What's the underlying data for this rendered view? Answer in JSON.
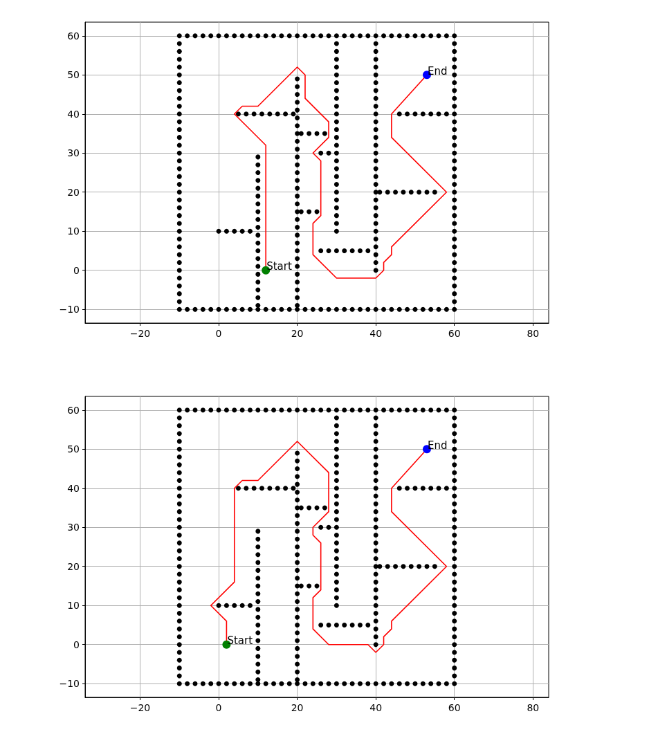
{
  "chart_data": [
    {
      "type": "scatter",
      "xlim": [
        -34,
        84
      ],
      "ylim": [
        -13.5,
        63.5
      ],
      "xticks": [
        {
          "value": -20,
          "label": "−20"
        },
        0,
        20,
        40,
        60,
        80
      ],
      "yticks": [
        {
          "value": -10,
          "label": "−10"
        },
        0,
        10,
        20,
        30,
        40,
        50,
        60
      ],
      "grid": true,
      "series": [
        {
          "color": "#000000",
          "x": [
            -10,
            -8,
            -6,
            -4,
            -2,
            0,
            2,
            4,
            6,
            8,
            10,
            12,
            14,
            16,
            18,
            20,
            22,
            24,
            26,
            28,
            30,
            32,
            34,
            36,
            38,
            40,
            42,
            44,
            46,
            48,
            50,
            52,
            54,
            56,
            58,
            60
          ],
          "values": [
            -10,
            -10,
            -10,
            -10,
            -10,
            -10,
            -10,
            -10,
            -10,
            -10,
            -10,
            -10,
            -10,
            -10,
            -10,
            -10,
            -10,
            -10,
            -10,
            -10,
            -10,
            -10,
            -10,
            -10,
            -10,
            -10,
            -10,
            -10,
            -10,
            -10,
            -10,
            -10,
            -10,
            -10,
            -10,
            -10
          ]
        },
        {
          "color": "#000000",
          "x": [
            -10,
            -8,
            -6,
            -4,
            -2,
            0,
            2,
            4,
            6,
            8,
            10,
            12,
            14,
            16,
            18,
            20,
            22,
            24,
            26,
            28,
            30,
            32,
            34,
            36,
            38,
            40,
            42,
            44,
            46,
            48,
            50,
            52,
            54,
            56,
            58,
            60
          ],
          "values": [
            60,
            60,
            60,
            60,
            60,
            60,
            60,
            60,
            60,
            60,
            60,
            60,
            60,
            60,
            60,
            60,
            60,
            60,
            60,
            60,
            60,
            60,
            60,
            60,
            60,
            60,
            60,
            60,
            60,
            60,
            60,
            60,
            60,
            60,
            60,
            60
          ]
        },
        {
          "color": "#000000",
          "x": [
            -10,
            -10,
            -10,
            -10,
            -10,
            -10,
            -10,
            -10,
            -10,
            -10,
            -10,
            -10,
            -10,
            -10,
            -10,
            -10,
            -10,
            -10,
            -10,
            -10,
            -10,
            -10,
            -10,
            -10,
            -10,
            -10,
            -10,
            -10,
            -10,
            -10,
            -10,
            -10,
            -10,
            -10
          ],
          "values": [
            -8,
            -6,
            -4,
            -2,
            0,
            2,
            4,
            6,
            8,
            10,
            12,
            14,
            16,
            18,
            20,
            22,
            24,
            26,
            28,
            30,
            32,
            34,
            36,
            38,
            40,
            42,
            44,
            46,
            48,
            50,
            52,
            54,
            56,
            58
          ]
        },
        {
          "color": "#000000",
          "x": [
            60,
            60,
            60,
            60,
            60,
            60,
            60,
            60,
            60,
            60,
            60,
            60,
            60,
            60,
            60,
            60,
            60,
            60,
            60,
            60,
            60,
            60,
            60,
            60,
            60,
            60,
            60,
            60,
            60,
            60,
            60,
            60,
            60,
            60
          ],
          "values": [
            -8,
            -6,
            -4,
            -2,
            0,
            2,
            4,
            6,
            8,
            10,
            12,
            14,
            16,
            18,
            20,
            22,
            24,
            26,
            28,
            30,
            32,
            34,
            36,
            38,
            40,
            42,
            44,
            46,
            48,
            50,
            52,
            54,
            56,
            58
          ]
        },
        {
          "color": "#000000",
          "x": [
            10,
            10,
            10,
            10,
            10,
            10,
            10,
            10,
            10,
            10,
            10,
            10,
            10,
            10,
            10,
            10,
            10,
            10,
            10,
            10
          ],
          "values": [
            -9,
            -7,
            -5,
            -3,
            -1,
            1,
            3,
            5,
            7,
            9,
            11,
            13,
            15,
            17,
            19,
            21,
            23,
            25,
            27,
            29
          ]
        },
        {
          "color": "#000000",
          "x": [
            0,
            2,
            4,
            6,
            8
          ],
          "values": [
            10,
            10,
            10,
            10,
            10
          ]
        },
        {
          "color": "#000000",
          "x": [
            20,
            20,
            20,
            20,
            20,
            20,
            20,
            20,
            20,
            20,
            20,
            20,
            20,
            20,
            20,
            20,
            20,
            20,
            20,
            20,
            20,
            20,
            20,
            20,
            20,
            20,
            20,
            20,
            20,
            20
          ],
          "values": [
            -9,
            -7,
            -5,
            -3,
            -1,
            1,
            3,
            5,
            7,
            9,
            11,
            13,
            15,
            17,
            19,
            21,
            23,
            25,
            27,
            29,
            31,
            33,
            35,
            37,
            39,
            41,
            43,
            45,
            47,
            49
          ]
        },
        {
          "color": "#000000",
          "x": [
            5,
            7,
            9,
            11,
            13,
            15,
            17,
            19
          ],
          "values": [
            40,
            40,
            40,
            40,
            40,
            40,
            40,
            40
          ]
        },
        {
          "color": "#000000",
          "x": [
            21,
            23,
            25,
            27
          ],
          "values": [
            35,
            35,
            35,
            35
          ]
        },
        {
          "color": "#000000",
          "x": [
            26,
            28
          ],
          "values": [
            30,
            30
          ]
        },
        {
          "color": "#000000",
          "x": [
            30,
            30,
            30,
            30,
            30,
            30,
            30,
            30,
            30,
            30,
            30,
            30,
            30,
            30,
            30,
            30,
            30,
            30,
            30,
            30,
            30,
            30,
            30,
            30,
            30
          ],
          "values": [
            10,
            12,
            14,
            16,
            18,
            20,
            22,
            24,
            26,
            28,
            30,
            32,
            34,
            36,
            38,
            40,
            42,
            44,
            46,
            48,
            50,
            52,
            54,
            56,
            58
          ]
        },
        {
          "color": "#000000",
          "x": [
            21,
            23,
            25
          ],
          "values": [
            15,
            15,
            15
          ]
        },
        {
          "color": "#000000",
          "x": [
            26,
            28,
            30,
            32,
            34,
            36,
            38
          ],
          "values": [
            5,
            5,
            5,
            5,
            5,
            5,
            5
          ]
        },
        {
          "color": "#000000",
          "x": [
            40,
            40,
            40,
            40,
            40,
            40,
            40,
            40,
            40,
            40,
            40,
            40,
            40,
            40,
            40,
            40,
            40,
            40,
            40,
            40,
            40,
            40,
            40,
            40,
            40,
            40,
            40,
            40,
            40,
            40
          ],
          "values": [
            0,
            2,
            4,
            6,
            8,
            10,
            12,
            14,
            16,
            18,
            20,
            22,
            24,
            26,
            28,
            30,
            32,
            34,
            36,
            38,
            40,
            42,
            44,
            46,
            48,
            50,
            52,
            54,
            56,
            58
          ]
        },
        {
          "color": "#000000",
          "x": [
            41,
            43,
            45,
            47,
            49,
            51,
            53,
            55
          ],
          "values": [
            20,
            20,
            20,
            20,
            20,
            20,
            20,
            20
          ]
        },
        {
          "color": "#000000",
          "x": [
            46,
            48,
            50,
            52,
            54,
            56,
            58
          ],
          "values": [
            40,
            40,
            40,
            40,
            40,
            40,
            40
          ]
        },
        {
          "type": "line",
          "color": "#ff0000",
          "x": [
            12,
            12,
            4,
            6,
            10,
            20,
            22,
            22,
            28,
            28,
            24,
            26,
            26,
            24,
            24,
            30,
            40,
            42,
            42,
            44,
            44,
            58,
            44,
            44,
            53
          ],
          "values": [
            0,
            32,
            40,
            42,
            42,
            52,
            50,
            44,
            38,
            34,
            30,
            28,
            14,
            12,
            4,
            -2,
            -2,
            0,
            2,
            4,
            6,
            20,
            34,
            40,
            50
          ]
        },
        {
          "color": "#008000",
          "x": [
            12
          ],
          "values": [
            0
          ]
        },
        {
          "color": "#0000ff",
          "x": [
            53
          ],
          "values": [
            50
          ]
        }
      ],
      "annotations": [
        {
          "text": "Start",
          "x": 12,
          "y": 0
        },
        {
          "text": "End",
          "x": 53,
          "y": 50
        }
      ]
    },
    {
      "type": "scatter",
      "xlim": [
        -34,
        84
      ],
      "ylim": [
        -13.5,
        63.5
      ],
      "xticks": [
        {
          "value": -20,
          "label": "−20"
        },
        0,
        20,
        40,
        60,
        80
      ],
      "yticks": [
        {
          "value": -10,
          "label": "−10"
        },
        0,
        10,
        20,
        30,
        40,
        50,
        60
      ],
      "grid": true,
      "series": [
        {
          "color": "#000000",
          "x": [
            -10,
            -8,
            -6,
            -4,
            -2,
            0,
            2,
            4,
            6,
            8,
            10,
            12,
            14,
            16,
            18,
            20,
            22,
            24,
            26,
            28,
            30,
            32,
            34,
            36,
            38,
            40,
            42,
            44,
            46,
            48,
            50,
            52,
            54,
            56,
            58,
            60
          ],
          "values": [
            -10,
            -10,
            -10,
            -10,
            -10,
            -10,
            -10,
            -10,
            -10,
            -10,
            -10,
            -10,
            -10,
            -10,
            -10,
            -10,
            -10,
            -10,
            -10,
            -10,
            -10,
            -10,
            -10,
            -10,
            -10,
            -10,
            -10,
            -10,
            -10,
            -10,
            -10,
            -10,
            -10,
            -10,
            -10,
            -10
          ]
        },
        {
          "color": "#000000",
          "x": [
            -10,
            -8,
            -6,
            -4,
            -2,
            0,
            2,
            4,
            6,
            8,
            10,
            12,
            14,
            16,
            18,
            20,
            22,
            24,
            26,
            28,
            30,
            32,
            34,
            36,
            38,
            40,
            42,
            44,
            46,
            48,
            50,
            52,
            54,
            56,
            58,
            60
          ],
          "values": [
            60,
            60,
            60,
            60,
            60,
            60,
            60,
            60,
            60,
            60,
            60,
            60,
            60,
            60,
            60,
            60,
            60,
            60,
            60,
            60,
            60,
            60,
            60,
            60,
            60,
            60,
            60,
            60,
            60,
            60,
            60,
            60,
            60,
            60,
            60,
            60
          ]
        },
        {
          "color": "#000000",
          "x": [
            -10,
            -10,
            -10,
            -10,
            -10,
            -10,
            -10,
            -10,
            -10,
            -10,
            -10,
            -10,
            -10,
            -10,
            -10,
            -10,
            -10,
            -10,
            -10,
            -10,
            -10,
            -10,
            -10,
            -10,
            -10,
            -10,
            -10,
            -10,
            -10,
            -10,
            -10,
            -10,
            -10,
            -10
          ],
          "values": [
            -8,
            -6,
            -4,
            -2,
            0,
            2,
            4,
            6,
            8,
            10,
            12,
            14,
            16,
            18,
            20,
            22,
            24,
            26,
            28,
            30,
            32,
            34,
            36,
            38,
            40,
            42,
            44,
            46,
            48,
            50,
            52,
            54,
            56,
            58
          ]
        },
        {
          "color": "#000000",
          "x": [
            60,
            60,
            60,
            60,
            60,
            60,
            60,
            60,
            60,
            60,
            60,
            60,
            60,
            60,
            60,
            60,
            60,
            60,
            60,
            60,
            60,
            60,
            60,
            60,
            60,
            60,
            60,
            60,
            60,
            60,
            60,
            60,
            60,
            60
          ],
          "values": [
            -8,
            -6,
            -4,
            -2,
            0,
            2,
            4,
            6,
            8,
            10,
            12,
            14,
            16,
            18,
            20,
            22,
            24,
            26,
            28,
            30,
            32,
            34,
            36,
            38,
            40,
            42,
            44,
            46,
            48,
            50,
            52,
            54,
            56,
            58
          ]
        },
        {
          "color": "#000000",
          "x": [
            10,
            10,
            10,
            10,
            10,
            10,
            10,
            10,
            10,
            10,
            10,
            10,
            10,
            10,
            10,
            10,
            10,
            10,
            10,
            10
          ],
          "values": [
            -9,
            -7,
            -5,
            -3,
            -1,
            1,
            3,
            5,
            7,
            9,
            11,
            13,
            15,
            17,
            19,
            21,
            23,
            25,
            27,
            29
          ]
        },
        {
          "color": "#000000",
          "x": [
            0,
            2,
            4,
            6,
            8
          ],
          "values": [
            10,
            10,
            10,
            10,
            10
          ]
        },
        {
          "color": "#000000",
          "x": [
            20,
            20,
            20,
            20,
            20,
            20,
            20,
            20,
            20,
            20,
            20,
            20,
            20,
            20,
            20,
            20,
            20,
            20,
            20,
            20,
            20,
            20,
            20,
            20,
            20,
            20,
            20,
            20,
            20,
            20
          ],
          "values": [
            -9,
            -7,
            -5,
            -3,
            -1,
            1,
            3,
            5,
            7,
            9,
            11,
            13,
            15,
            17,
            19,
            21,
            23,
            25,
            27,
            29,
            31,
            33,
            35,
            37,
            39,
            41,
            43,
            45,
            47,
            49
          ]
        },
        {
          "color": "#000000",
          "x": [
            5,
            7,
            9,
            11,
            13,
            15,
            17,
            19
          ],
          "values": [
            40,
            40,
            40,
            40,
            40,
            40,
            40,
            40
          ]
        },
        {
          "color": "#000000",
          "x": [
            21,
            23,
            25,
            27
          ],
          "values": [
            35,
            35,
            35,
            35
          ]
        },
        {
          "color": "#000000",
          "x": [
            26,
            28
          ],
          "values": [
            30,
            30
          ]
        },
        {
          "color": "#000000",
          "x": [
            30,
            30,
            30,
            30,
            30,
            30,
            30,
            30,
            30,
            30,
            30,
            30,
            30,
            30,
            30,
            30,
            30,
            30,
            30,
            30,
            30,
            30,
            30,
            30,
            30
          ],
          "values": [
            10,
            12,
            14,
            16,
            18,
            20,
            22,
            24,
            26,
            28,
            30,
            32,
            34,
            36,
            38,
            40,
            42,
            44,
            46,
            48,
            50,
            52,
            54,
            56,
            58
          ]
        },
        {
          "color": "#000000",
          "x": [
            21,
            23,
            25
          ],
          "values": [
            15,
            15,
            15
          ]
        },
        {
          "color": "#000000",
          "x": [
            26,
            28,
            30,
            32,
            34,
            36,
            38
          ],
          "values": [
            5,
            5,
            5,
            5,
            5,
            5,
            5
          ]
        },
        {
          "color": "#000000",
          "x": [
            40,
            40,
            40,
            40,
            40,
            40,
            40,
            40,
            40,
            40,
            40,
            40,
            40,
            40,
            40,
            40,
            40,
            40,
            40,
            40,
            40,
            40,
            40,
            40,
            40,
            40,
            40,
            40,
            40,
            40
          ],
          "values": [
            0,
            2,
            4,
            6,
            8,
            10,
            12,
            14,
            16,
            18,
            20,
            22,
            24,
            26,
            28,
            30,
            32,
            34,
            36,
            38,
            40,
            42,
            44,
            46,
            48,
            50,
            52,
            54,
            56,
            58
          ]
        },
        {
          "color": "#000000",
          "x": [
            41,
            43,
            45,
            47,
            49,
            51,
            53,
            55
          ],
          "values": [
            20,
            20,
            20,
            20,
            20,
            20,
            20,
            20
          ]
        },
        {
          "color": "#000000",
          "x": [
            46,
            48,
            50,
            52,
            54,
            56,
            58
          ],
          "values": [
            40,
            40,
            40,
            40,
            40,
            40,
            40
          ]
        },
        {
          "type": "line",
          "color": "#ff0000",
          "x": [
            2,
            2,
            -2,
            4,
            4,
            6,
            10,
            20,
            28,
            28,
            24,
            24,
            26,
            26,
            24,
            24,
            28,
            38,
            40,
            42,
            42,
            44,
            44,
            58,
            44,
            44,
            53
          ],
          "values": [
            0,
            6,
            10,
            16,
            40,
            42,
            42,
            52,
            44,
            34,
            30,
            28,
            26,
            14,
            12,
            4,
            0,
            0,
            -2,
            0,
            2,
            4,
            6,
            20,
            34,
            40,
            50
          ]
        },
        {
          "color": "#008000",
          "x": [
            2
          ],
          "values": [
            0
          ]
        },
        {
          "color": "#0000ff",
          "x": [
            53
          ],
          "values": [
            50
          ]
        }
      ],
      "annotations": [
        {
          "text": "Start",
          "x": 2,
          "y": 0
        },
        {
          "text": "End",
          "x": 53,
          "y": 50
        }
      ]
    }
  ]
}
